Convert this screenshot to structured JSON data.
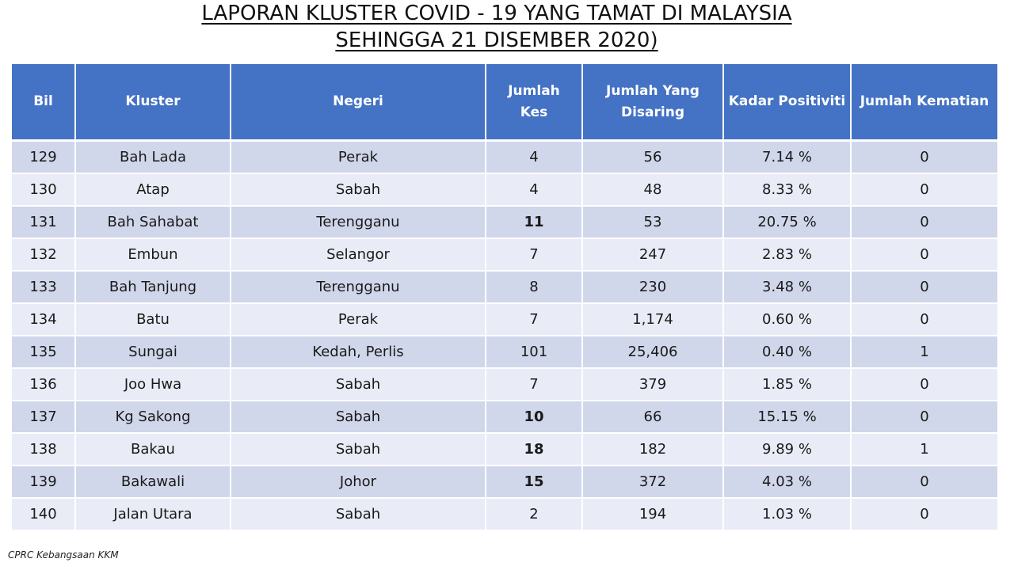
{
  "title": {
    "line1": "LAPORAN KLUSTER COVID - 19 YANG TAMAT DI MALAYSIA",
    "line2": "SEHINGGA 21 DISEMBER 2020)"
  },
  "table": {
    "headers": {
      "bil": "Bil",
      "kluster": "Kluster",
      "negeri": "Negeri",
      "jumlah_kes_1": "Jumlah",
      "jumlah_kes_2": "Kes",
      "disaring_1": "Jumlah Yang",
      "disaring_2": "Disaring",
      "kadar": "Kadar Positiviti",
      "kematian": "Jumlah Kematian"
    },
    "rows": [
      {
        "bil": "129",
        "kluster": "Bah Lada",
        "negeri": "Perak",
        "kes": "4",
        "disaring": "56",
        "kadar": "7.14 %",
        "kematian": "0"
      },
      {
        "bil": "130",
        "kluster": "Atap",
        "negeri": "Sabah",
        "kes": "4",
        "disaring": "48",
        "kadar": "8.33 %",
        "kematian": "0"
      },
      {
        "bil": "131",
        "kluster": "Bah Sahabat",
        "negeri": "Terengganu",
        "kes": "11",
        "disaring": "53",
        "kadar": "20.75 %",
        "kematian": "0"
      },
      {
        "bil": "132",
        "kluster": "Embun",
        "negeri": "Selangor",
        "kes": "7",
        "disaring": "247",
        "kadar": "2.83 %",
        "kematian": "0"
      },
      {
        "bil": "133",
        "kluster": "Bah Tanjung",
        "negeri": "Terengganu",
        "kes": "8",
        "disaring": "230",
        "kadar": "3.48 %",
        "kematian": "0"
      },
      {
        "bil": "134",
        "kluster": "Batu",
        "negeri": "Perak",
        "kes": "7",
        "disaring": "1,174",
        "kadar": "0.60 %",
        "kematian": "0"
      },
      {
        "bil": "135",
        "kluster": "Sungai",
        "negeri": "Kedah, Perlis",
        "kes": "101",
        "disaring": "25,406",
        "kadar": "0.40 %",
        "kematian": "1"
      },
      {
        "bil": "136",
        "kluster": "Joo Hwa",
        "negeri": "Sabah",
        "kes": "7",
        "disaring": "379",
        "kadar": "1.85 %",
        "kematian": "0"
      },
      {
        "bil": "137",
        "kluster": "Kg Sakong",
        "negeri": "Sabah",
        "kes": "10",
        "disaring": "66",
        "kadar": "15.15 %",
        "kematian": "0"
      },
      {
        "bil": "138",
        "kluster": "Bakau",
        "negeri": "Sabah",
        "kes": "18",
        "disaring": "182",
        "kadar": "9.89 %",
        "kematian": "1"
      },
      {
        "bil": "139",
        "kluster": "Bakawali",
        "negeri": "Johor",
        "kes": "15",
        "disaring": "372",
        "kadar": "4.03 %",
        "kematian": "0"
      },
      {
        "bil": "140",
        "kluster": "Jalan Utara",
        "negeri": "Sabah",
        "kes": "2",
        "disaring": "194",
        "kadar": "1.03 %",
        "kematian": "0"
      }
    ]
  },
  "source": "CPRC Kebangsaan KKM",
  "colors": {
    "header_bg": "#4472c4",
    "row_dark": "#d0d7ea",
    "row_light": "#e9ecf6"
  }
}
